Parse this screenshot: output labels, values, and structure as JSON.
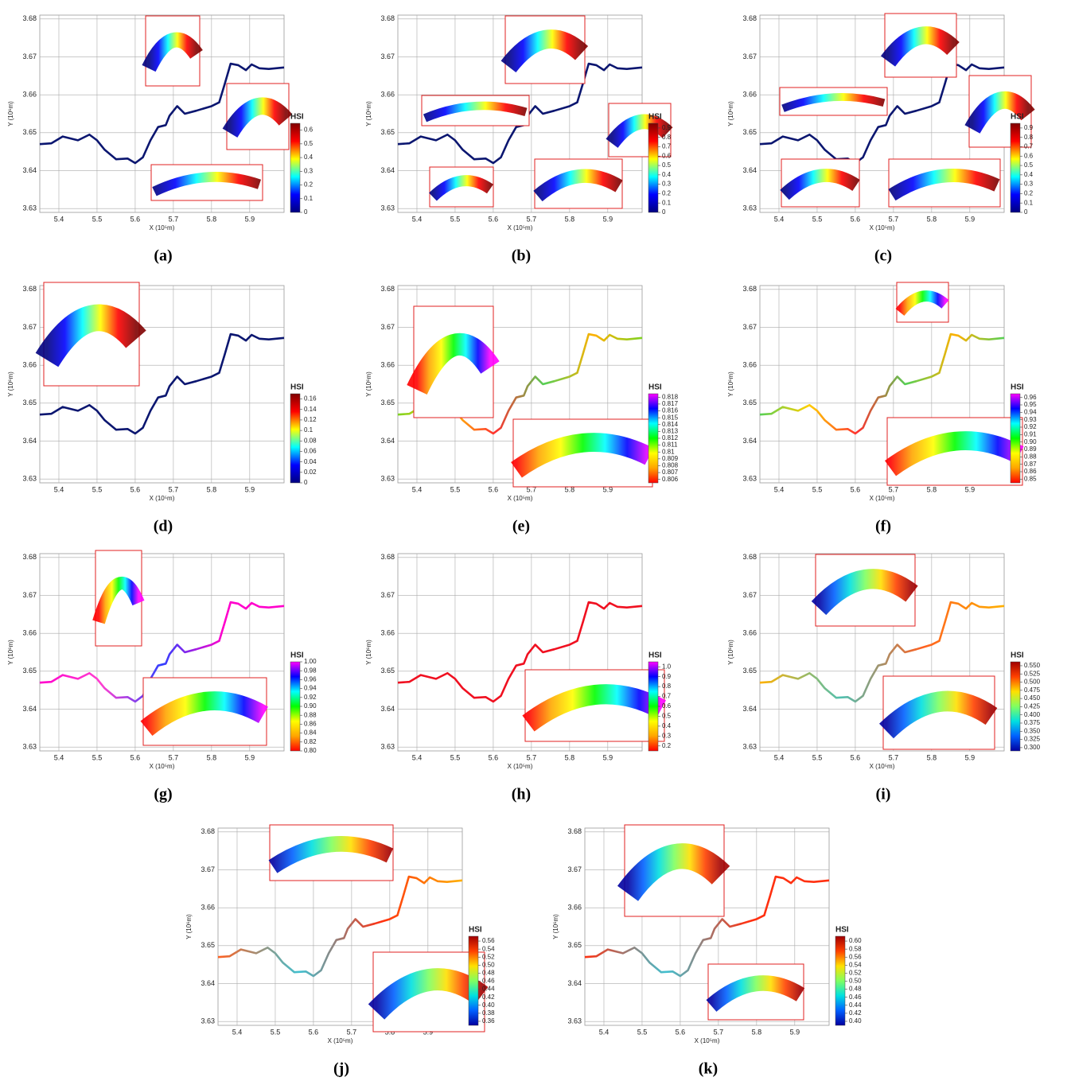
{
  "chart_data": [
    {
      "type": "map",
      "label": "(a)",
      "xlabel": "X (10⁵m)",
      "ylabel": "Y (10⁶m)",
      "xlim": [
        5.35,
        5.99
      ],
      "ylim": [
        3.629,
        3.681
      ],
      "xticks": [
        5.4,
        5.5,
        5.6,
        5.7,
        5.8,
        5.9
      ],
      "yticks": [
        3.63,
        3.64,
        3.65,
        3.66,
        3.67,
        3.68
      ],
      "grid": true,
      "colors": [
        "#0b1670"
      ],
      "colorbar_title": "HSI",
      "colormap": [
        "#00007f",
        "#0000ff",
        "#00ffff",
        "#ffff00",
        "#ff0000",
        "#7f0000"
      ],
      "clim": [
        0,
        0.65
      ],
      "cticks": [
        0,
        0.1,
        0.2,
        0.3,
        0.4,
        0.5,
        0.6
      ]
    },
    {
      "type": "map",
      "label": "(b)",
      "xlabel": "X (10⁵m)",
      "ylabel": "Y (10⁶m)",
      "xlim": [
        5.35,
        5.99
      ],
      "ylim": [
        3.629,
        3.681
      ],
      "xticks": [
        5.4,
        5.5,
        5.6,
        5.7,
        5.8,
        5.9
      ],
      "yticks": [
        3.63,
        3.64,
        3.65,
        3.66,
        3.67,
        3.68
      ],
      "grid": true,
      "colors": [
        "#0b1670"
      ],
      "colorbar_title": "HSI",
      "colormap": [
        "#00007f",
        "#0000ff",
        "#00ffff",
        "#ffff00",
        "#ff0000",
        "#7f0000"
      ],
      "clim": [
        0,
        0.95
      ],
      "cticks": [
        0,
        0.1,
        0.2,
        0.3,
        0.4,
        0.5,
        0.6,
        0.7,
        0.8,
        0.9
      ]
    },
    {
      "type": "map",
      "label": "(c)",
      "xlabel": "X (10⁵m)",
      "ylabel": "Y (10⁶m)",
      "xlim": [
        5.35,
        5.99
      ],
      "ylim": [
        3.629,
        3.681
      ],
      "xticks": [
        5.4,
        5.5,
        5.6,
        5.7,
        5.8,
        5.9
      ],
      "yticks": [
        3.63,
        3.64,
        3.65,
        3.66,
        3.67,
        3.68
      ],
      "grid": true,
      "colors": [
        "#0b1670"
      ],
      "colorbar_title": "HSI",
      "colormap": [
        "#00007f",
        "#0000ff",
        "#00ffff",
        "#ffff00",
        "#ff0000",
        "#7f0000"
      ],
      "clim": [
        0,
        0.95
      ],
      "cticks": [
        0,
        0.1,
        0.2,
        0.3,
        0.4,
        0.5,
        0.6,
        0.7,
        0.8,
        0.9
      ]
    },
    {
      "type": "map",
      "label": "(d)",
      "xlabel": "X (10⁵m)",
      "ylabel": "Y (10⁶m)",
      "xlim": [
        5.35,
        5.99
      ],
      "ylim": [
        3.629,
        3.681
      ],
      "xticks": [
        5.4,
        5.5,
        5.6,
        5.7,
        5.8,
        5.9
      ],
      "yticks": [
        3.63,
        3.64,
        3.65,
        3.66,
        3.67,
        3.68
      ],
      "grid": true,
      "colors": [
        "#0b1670"
      ],
      "colorbar_title": "HSI",
      "colormap": [
        "#00007f",
        "#0000ff",
        "#00ffff",
        "#ffff00",
        "#ff0000",
        "#7f0000"
      ],
      "clim": [
        0,
        0.17
      ],
      "cticks": [
        0,
        0.02,
        0.04,
        0.06,
        0.08,
        0.1,
        0.12,
        0.14,
        0.16
      ]
    },
    {
      "type": "map",
      "label": "(e)",
      "xlabel": "X (10⁵m)",
      "ylabel": "Y (10⁶m)",
      "xlim": [
        5.35,
        5.99
      ],
      "ylim": [
        3.629,
        3.681
      ],
      "xticks": [
        5.4,
        5.5,
        5.6,
        5.7,
        5.8,
        5.9
      ],
      "yticks": [
        3.63,
        3.64,
        3.65,
        3.66,
        3.67,
        3.68
      ],
      "grid": true,
      "colors": [
        "#7ed321",
        "#ffd000",
        "#ff3030",
        "#55d055",
        "#ffb000",
        "#7ed321"
      ],
      "colorbar_title": "HSI",
      "colormap": [
        "#ff0000",
        "#ffa500",
        "#ffff00",
        "#00ff00",
        "#00ffff",
        "#0000ff",
        "#ff00ff"
      ],
      "clim": [
        0.8055,
        0.8185
      ],
      "cticks": [
        0.806,
        0.807,
        0.808,
        0.809,
        0.81,
        0.811,
        0.812,
        0.813,
        0.814,
        0.815,
        0.816,
        0.817,
        0.818
      ]
    },
    {
      "type": "map",
      "label": "(f)",
      "xlabel": "X (10⁵m)",
      "ylabel": "Y (10⁶m)",
      "xlim": [
        5.35,
        5.99
      ],
      "ylim": [
        3.629,
        3.681
      ],
      "xticks": [
        5.4,
        5.5,
        5.6,
        5.7,
        5.8,
        5.9
      ],
      "yticks": [
        3.63,
        3.64,
        3.65,
        3.66,
        3.67,
        3.68
      ],
      "grid": true,
      "colors": [
        "#55d055",
        "#ffd000",
        "#ff3030",
        "#55d055",
        "#ffb000",
        "#55d055"
      ],
      "colorbar_title": "HSI",
      "colormap": [
        "#ff0000",
        "#ffa500",
        "#ffff00",
        "#00ff00",
        "#00ffff",
        "#0000ff",
        "#ff00ff"
      ],
      "clim": [
        0.845,
        0.965
      ],
      "cticks": [
        0.85,
        0.86,
        0.87,
        0.88,
        0.89,
        {
          "value": 0.9,
          "label": "0.90"
        },
        0.91,
        0.92,
        0.93,
        0.94,
        0.95,
        0.96
      ]
    },
    {
      "type": "map",
      "label": "(g)",
      "xlabel": "X (10⁵m)",
      "ylabel": "Y (10⁶m)",
      "xlim": [
        5.35,
        5.99
      ],
      "ylim": [
        3.629,
        3.681
      ],
      "xticks": [
        5.4,
        5.5,
        5.6,
        5.7,
        5.8,
        5.9
      ],
      "yticks": [
        3.63,
        3.64,
        3.65,
        3.66,
        3.67,
        3.68
      ],
      "grid": true,
      "colors": [
        "#ff00cc",
        "#ff40d0",
        "#3040ff",
        "#ff00cc",
        "#ff00cc"
      ],
      "colorbar_title": "HSI",
      "colormap": [
        "#ff0000",
        "#ffa500",
        "#ffff00",
        "#00ff00",
        "#00ffff",
        "#0000ff",
        "#ff00ff"
      ],
      "clim": [
        0.8,
        1.0
      ],
      "cticks": [
        {
          "value": 0.8,
          "label": "0.80"
        },
        0.82,
        0.84,
        0.86,
        0.88,
        {
          "value": 0.9,
          "label": "0.90"
        },
        0.92,
        0.94,
        0.96,
        0.98,
        {
          "value": 1,
          "label": "1.00"
        }
      ]
    },
    {
      "type": "map",
      "label": "(h)",
      "xlabel": "X (10⁵m)",
      "ylabel": "Y (10⁶m)",
      "xlim": [
        5.35,
        5.99
      ],
      "ylim": [
        3.629,
        3.681
      ],
      "xticks": [
        5.4,
        5.5,
        5.6,
        5.7,
        5.8,
        5.9
      ],
      "yticks": [
        3.63,
        3.64,
        3.65,
        3.66,
        3.67,
        3.68
      ],
      "grid": true,
      "colors": [
        "#f01020"
      ],
      "colorbar_title": "HSI",
      "colormap": [
        "#ff0000",
        "#ffa500",
        "#ffff00",
        "#00ff00",
        "#00ffff",
        "#0000ff",
        "#ff00ff"
      ],
      "clim": [
        0.15,
        1.05
      ],
      "cticks": [
        0.2,
        0.3,
        0.4,
        0.5,
        0.6,
        0.7,
        0.8,
        0.9,
        {
          "value": 1,
          "label": "1.0"
        }
      ]
    },
    {
      "type": "map",
      "label": "(i)",
      "xlabel": "X (10⁵m)",
      "ylabel": "Y (10⁶m)",
      "xlim": [
        5.35,
        5.99
      ],
      "ylim": [
        3.629,
        3.681
      ],
      "xticks": [
        5.4,
        5.5,
        5.6,
        5.7,
        5.8,
        5.9
      ],
      "yticks": [
        3.63,
        3.64,
        3.65,
        3.66,
        3.67,
        3.68
      ],
      "grid": true,
      "colors": [
        "#ffb000",
        "#50c0b0",
        "#ff6020",
        "#ffb000"
      ],
      "colorbar_title": "HSI",
      "colormap": [
        "#0000a0",
        "#0060ff",
        "#00e0e0",
        "#80ff60",
        "#ffe000",
        "#ff4000",
        "#a00000"
      ],
      "clim": [
        0.29,
        0.562
      ],
      "cticks": [
        {
          "value": 0.3,
          "label": "0.300"
        },
        0.325,
        {
          "value": 0.35,
          "label": "0.350"
        },
        0.375,
        {
          "value": 0.4,
          "label": "0.400"
        },
        0.425,
        {
          "value": 0.45,
          "label": "0.450"
        },
        0.475,
        {
          "value": 0.5,
          "label": "0.500"
        },
        0.525,
        {
          "value": 0.55,
          "label": "0.550"
        }
      ]
    },
    {
      "type": "map",
      "label": "(j)",
      "xlabel": "X (10⁵m)",
      "ylabel": "Y (10⁶m)",
      "xlim": [
        5.35,
        5.99
      ],
      "ylim": [
        3.629,
        3.681
      ],
      "xticks": [
        5.4,
        5.5,
        5.6,
        5.7,
        5.8,
        5.9
      ],
      "yticks": [
        3.63,
        3.64,
        3.65,
        3.66,
        3.67,
        3.68
      ],
      "grid": true,
      "colors": [
        "#ff6020",
        "#40c0d0",
        "#ff3010",
        "#ffb000"
      ],
      "colorbar_title": "HSI",
      "colormap": [
        "#0000a0",
        "#0060ff",
        "#00e0e0",
        "#80ff60",
        "#ffe000",
        "#ff4000",
        "#a00000"
      ],
      "clim": [
        0.35,
        0.572
      ],
      "cticks": [
        0.36,
        0.38,
        {
          "value": 0.4,
          "label": "0.40"
        },
        0.42,
        0.44,
        0.46,
        0.48,
        {
          "value": 0.5,
          "label": "0.50"
        },
        0.52,
        0.54,
        0.56
      ]
    },
    {
      "type": "map",
      "label": "(k)",
      "xlabel": "X (10⁵m)",
      "ylabel": "Y (10⁶m)",
      "xlim": [
        5.35,
        5.99
      ],
      "ylim": [
        3.629,
        3.681
      ],
      "xticks": [
        5.4,
        5.5,
        5.6,
        5.7,
        5.8,
        5.9
      ],
      "yticks": [
        3.63,
        3.64,
        3.65,
        3.66,
        3.67,
        3.68
      ],
      "grid": true,
      "colors": [
        "#ff3010",
        "#40c0d0",
        "#ff3010",
        "#ff3010"
      ],
      "colorbar_title": "HSI",
      "colormap": [
        "#0000a0",
        "#0060ff",
        "#00e0e0",
        "#80ff60",
        "#ffe000",
        "#ff4000",
        "#a00000"
      ],
      "clim": [
        0.39,
        0.612
      ],
      "cticks": [
        {
          "value": 0.4,
          "label": "0.40"
        },
        0.42,
        0.44,
        0.46,
        0.48,
        {
          "value": 0.5,
          "label": "0.50"
        },
        0.52,
        0.54,
        0.56,
        0.58,
        {
          "value": 0.6,
          "label": "0.60"
        }
      ]
    }
  ]
}
